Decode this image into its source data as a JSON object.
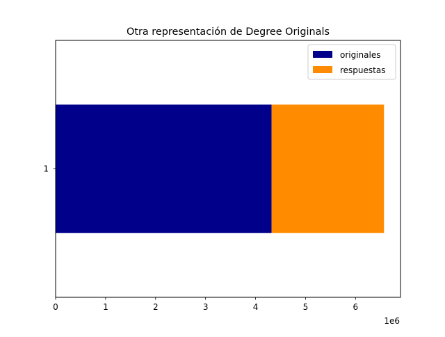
{
  "chart_data": {
    "type": "bar",
    "orientation": "horizontal",
    "stacked": true,
    "title": "Otra representación de Degree Originals",
    "xlabel": "",
    "ylabel": "",
    "x_offset_text": "1e6",
    "x_ticks": [
      0,
      1,
      2,
      3,
      4,
      5,
      6
    ],
    "xlim": [
      0,
      6900000
    ],
    "categories": [
      "1"
    ],
    "series": [
      {
        "name": "originales",
        "values": [
          4320000
        ],
        "color": "#00008b"
      },
      {
        "name": "respuestas",
        "values": [
          2250000
        ],
        "color": "#ff8c00"
      }
    ],
    "grid": false,
    "legend_position": "upper right"
  }
}
